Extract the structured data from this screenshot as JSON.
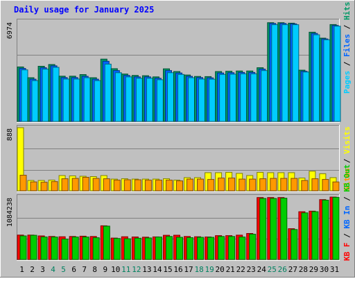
{
  "chart_data": [
    {
      "type": "bar",
      "title": "Daily usage for January 2025",
      "categories": [
        "1",
        "2",
        "3",
        "4",
        "5",
        "6",
        "7",
        "8",
        "9",
        "10",
        "11",
        "12",
        "13",
        "14",
        "15",
        "16",
        "17",
        "18",
        "19",
        "20",
        "21",
        "22",
        "23",
        "24",
        "25",
        "26",
        "27",
        "28",
        "29",
        "30",
        "31"
      ],
      "weekend_days": [
        "4",
        "5",
        "11",
        "12",
        "18",
        "19",
        "25",
        "26"
      ],
      "ylim": [
        0,
        6974
      ],
      "y_tick_label": "6974",
      "series": [
        {
          "name": "Hits",
          "color": "#009966",
          "values": [
            3800,
            3050,
            3850,
            3970,
            3160,
            3160,
            3270,
            3050,
            4350,
            3680,
            3310,
            3210,
            3190,
            3110,
            3670,
            3480,
            3240,
            3140,
            3130,
            3480,
            3500,
            3520,
            3520,
            3750,
            6890,
            6890,
            6860,
            3580,
            6230,
            5810,
            6760
          ]
        },
        {
          "name": "Files",
          "color": "#0066ff",
          "values": [
            3700,
            2950,
            3750,
            3880,
            3060,
            3060,
            3150,
            2950,
            4200,
            3550,
            3210,
            3110,
            3110,
            3010,
            3550,
            3380,
            3150,
            3060,
            3040,
            3380,
            3400,
            3420,
            3420,
            3650,
            6840,
            6840,
            6810,
            3500,
            6140,
            5760,
            6700
          ]
        },
        {
          "name": "Pages",
          "color": "#00ccff",
          "values": [
            3600,
            2850,
            3650,
            3780,
            2960,
            2960,
            3050,
            2850,
            4000,
            3400,
            3110,
            3010,
            3010,
            2910,
            3400,
            3280,
            3050,
            2960,
            2950,
            3280,
            3300,
            3320,
            3320,
            3550,
            6750,
            6750,
            6750,
            3450,
            6050,
            5700,
            6650
          ]
        }
      ]
    },
    {
      "type": "bar",
      "ylim": [
        0,
        888
      ],
      "y_tick_label": "888",
      "series": [
        {
          "name": "Visits",
          "color": "#ffff00",
          "values": [
            888,
            145,
            145,
            150,
            215,
            210,
            205,
            200,
            215,
            165,
            170,
            165,
            165,
            165,
            170,
            150,
            185,
            185,
            255,
            255,
            260,
            245,
            215,
            260,
            255,
            255,
            255,
            180,
            275,
            240,
            185
          ]
        },
        {
          "name": "Sites",
          "color": "#ff9900",
          "values": [
            220,
            125,
            120,
            130,
            170,
            175,
            190,
            175,
            170,
            150,
            155,
            155,
            150,
            150,
            150,
            140,
            165,
            165,
            160,
            180,
            180,
            165,
            165,
            170,
            175,
            175,
            175,
            145,
            170,
            160,
            125
          ]
        }
      ]
    },
    {
      "type": "bar",
      "ylim": [
        0,
        1084238
      ],
      "y_tick_label": "1084238",
      "series": [
        {
          "name": "KB F",
          "color": "#ff0000",
          "values": [
            424000,
            424000,
            410000,
            400000,
            395000,
            400000,
            405000,
            400000,
            586000,
            372000,
            395000,
            392000,
            388000,
            393000,
            420000,
            422000,
            400000,
            395000,
            392000,
            415000,
            414000,
            423000,
            452000,
            1076000,
            1076000,
            1076000,
            535000,
            830000,
            840000,
            1040000,
            1084000
          ]
        },
        {
          "name": "KB In",
          "color": "#0066ff",
          "values": []
        },
        {
          "name": "KB Out",
          "color": "#00cc00",
          "values": [
            410000,
            420000,
            392000,
            390000,
            355000,
            390000,
            390000,
            378000,
            580000,
            365000,
            360000,
            370000,
            375000,
            390000,
            400000,
            385000,
            380000,
            385000,
            385000,
            400000,
            400000,
            390000,
            440000,
            1060000,
            1060000,
            1065000,
            520000,
            810000,
            830000,
            1030000,
            1080000
          ]
        }
      ]
    }
  ]
}
